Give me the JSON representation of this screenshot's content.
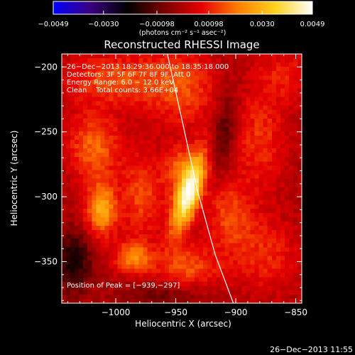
{
  "chart_data": {
    "type": "heatmap",
    "title": "Reconstructed RHESSI Image",
    "xlabel": "Heliocentric X (arcsec)",
    "ylabel": "Heliocentric Y (arcsec)",
    "xlim": [
      -1045,
      -845
    ],
    "ylim": [
      -382,
      -190
    ],
    "x_ticks": [
      {
        "value": -1000,
        "label": "−1000"
      },
      {
        "value": -950,
        "label": "−950"
      },
      {
        "value": -900,
        "label": "−900"
      },
      {
        "value": -850,
        "label": "−850"
      }
    ],
    "y_ticks": [
      {
        "value": -200,
        "label": "−200"
      },
      {
        "value": -250,
        "label": "−250"
      },
      {
        "value": -300,
        "label": "−300"
      },
      {
        "value": -350,
        "label": "−350"
      }
    ],
    "colorbar": {
      "min": -0.0049,
      "max": 0.0049,
      "colormap": [
        "#0000ff",
        "#3b0080",
        "#000000",
        "#7a0000",
        "#e60000",
        "#ff7f00",
        "#ffd21e",
        "#ffffff"
      ],
      "tick_values": [
        -0.0049,
        -0.003,
        -0.00098,
        0.00098,
        0.003,
        0.0049
      ],
      "tick_labels": [
        "−0.0049",
        "−0.0030",
        "−0.00098",
        "0.00098",
        "0.0030",
        "0.0049"
      ],
      "unit_label": "(photons cm⁻² s⁻¹ asec⁻²)"
    },
    "info_lines": [
      "26−Dec−2013 18:29:36.000 to 18:35:18.000",
      "Detectors: 3F 5F 6F 7F 8F 9F, Att 0",
      "Energy Range: 6.0 − 12.0 keV",
      "Clean    Total counts: 3.66E+04"
    ],
    "peak_text": "Position of Peak = [−939,−297]",
    "footer_text": "26−Dec−2013 11:55",
    "limb_curve": [
      [
        -957,
        -190
      ],
      [
        -945,
        -240
      ],
      [
        -932,
        -295
      ],
      [
        -917,
        -345
      ],
      [
        -902,
        -382
      ]
    ],
    "sources": [
      {
        "x": -939,
        "y": -297,
        "sx": 7,
        "sy": 22,
        "angle": 20,
        "amp": 0.0049
      },
      {
        "x": -948,
        "y": -277,
        "sx": 8,
        "sy": 12,
        "angle": 20,
        "amp": 0.0016
      },
      {
        "x": -1012,
        "y": -310,
        "sx": 9,
        "sy": 14,
        "angle": 0,
        "amp": 0.0028
      },
      {
        "x": -985,
        "y": -347,
        "sx": 11,
        "sy": 9,
        "angle": 0,
        "amp": 0.0022
      },
      {
        "x": -1018,
        "y": -262,
        "sx": 15,
        "sy": 18,
        "angle": 0,
        "amp": 0.0018
      },
      {
        "x": -978,
        "y": -298,
        "sx": 12,
        "sy": 22,
        "angle": 0,
        "amp": 0.0015
      },
      {
        "x": -1000,
        "y": -210,
        "sx": 30,
        "sy": 14,
        "angle": 0,
        "amp": 0.0015
      },
      {
        "x": -945,
        "y": -215,
        "sx": 20,
        "sy": 22,
        "angle": 0,
        "amp": 0.0014
      },
      {
        "x": -940,
        "y": -355,
        "sx": 18,
        "sy": 12,
        "angle": 0,
        "amp": 0.0016
      },
      {
        "x": -905,
        "y": -315,
        "sx": 14,
        "sy": 20,
        "angle": 0,
        "amp": 0.0014
      },
      {
        "x": -880,
        "y": -255,
        "sx": 14,
        "sy": 26,
        "angle": 0,
        "amp": 0.0012
      },
      {
        "x": -875,
        "y": -345,
        "sx": 18,
        "sy": 20,
        "angle": 0,
        "amp": 0.0011
      },
      {
        "x": -860,
        "y": -205,
        "sx": 15,
        "sy": 16,
        "angle": 0,
        "amp": 0.0009
      },
      {
        "x": -1035,
        "y": -350,
        "sx": 10,
        "sy": 16,
        "angle": 0,
        "amp": -0.002
      },
      {
        "x": -910,
        "y": -250,
        "sx": 7,
        "sy": 22,
        "angle": 10,
        "amp": -0.0012
      },
      {
        "x": -960,
        "y": -375,
        "sx": 25,
        "sy": 8,
        "angle": 0,
        "amp": -0.0009
      }
    ]
  }
}
